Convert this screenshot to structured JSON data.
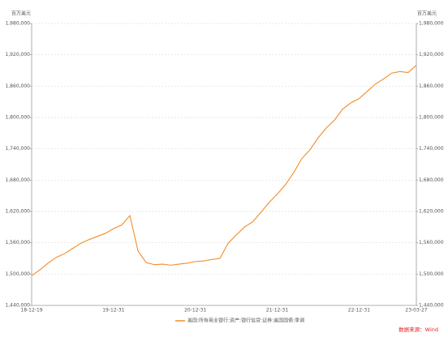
{
  "chart_data": {
    "type": "line",
    "y_label_left": "百万美元",
    "y_label_right": "百万美元",
    "source": "数据来源：Wind",
    "categories": [
      "18-12-19",
      null,
      null,
      null,
      null,
      null,
      null,
      null,
      null,
      null,
      "19-12-31",
      null,
      null,
      null,
      null,
      null,
      null,
      null,
      null,
      null,
      "20-12-31",
      null,
      null,
      null,
      null,
      null,
      null,
      null,
      null,
      null,
      "21-12-31",
      null,
      null,
      null,
      null,
      null,
      null,
      null,
      null,
      null,
      "22-12-31",
      null,
      null,
      null,
      null,
      null,
      null,
      "23-03-27"
    ],
    "series": [
      {
        "name": "美国:所有商业银行:资产:银行信贷:证券:美国国债:季调",
        "color": "#f28c28",
        "values": [
          1497000,
          1508000,
          1521000,
          1532000,
          1539000,
          1549000,
          1559000,
          1566000,
          1572000,
          1578000,
          1587000,
          1594000,
          1612000,
          1544000,
          1522000,
          1518000,
          1519000,
          1517000,
          1519000,
          1521000,
          1524000,
          1525000,
          1528000,
          1530000,
          1559000,
          1575000,
          1590000,
          1600000,
          1618000,
          1637000,
          1653000,
          1671000,
          1694000,
          1721000,
          1738000,
          1761000,
          1780000,
          1795000,
          1816000,
          1828000,
          1836000,
          1850000,
          1864000,
          1874000,
          1885000,
          1888000,
          1886000,
          1900000
        ]
      }
    ],
    "ylim": [
      1440000,
      1980000
    ],
    "yticks": [
      {
        "value": 1440000,
        "label": "1,440,000"
      },
      {
        "value": 1500000,
        "label": "1,500,000"
      },
      {
        "value": 1560000,
        "label": "1,560,000"
      },
      {
        "value": 1620000,
        "label": "1,620,000"
      },
      {
        "value": 1680000,
        "label": "1,680,000"
      },
      {
        "value": 1740000,
        "label": "1,740,000"
      },
      {
        "value": 1800000,
        "label": "1,800,000"
      },
      {
        "value": 1860000,
        "label": "1,860,000"
      },
      {
        "value": 1920000,
        "label": "1,920,000"
      },
      {
        "value": 1980000,
        "label": "1,980,000"
      }
    ],
    "grid": true
  }
}
